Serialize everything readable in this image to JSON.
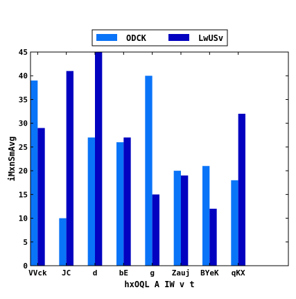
{
  "chart_data": {
    "type": "bar",
    "title": "",
    "xlabel": "hxOQL A IW v t",
    "ylabel": "iMxnSmAvg",
    "categories": [
      "VVck",
      "JC",
      "d",
      "bE",
      "g",
      "Zauj",
      "BYeK",
      "qKX"
    ],
    "series": [
      {
        "name": "ODCK",
        "color": "#0a74f8",
        "values": [
          39,
          10,
          27,
          26,
          40,
          20,
          21,
          18
        ]
      },
      {
        "name": "LwUSv",
        "color": "#0202c0",
        "values": [
          29,
          41,
          45,
          27,
          15,
          19,
          12,
          32
        ]
      }
    ],
    "ylim": [
      0,
      45
    ],
    "yticks": [
      0,
      5,
      10,
      15,
      20,
      25,
      30,
      35,
      40,
      45
    ],
    "grid": false,
    "legend_position": "top-center"
  }
}
